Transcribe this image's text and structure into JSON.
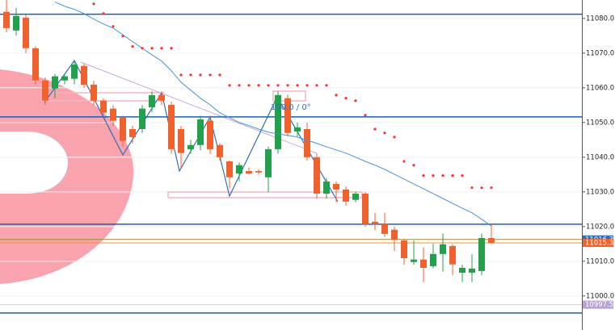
{
  "chart_data": {
    "type": "candlestick",
    "open": [
      11081.9,
      11076.5,
      11080.2,
      11071.4,
      11062.1,
      11059.8,
      11062.1,
      11062.6,
      11066.3,
      11060.9,
      11056.3,
      11054.0,
      11051.6,
      11048.1,
      11048.1,
      11054.4,
      11057.9,
      11055.1,
      11048.1,
      11042.3,
      11043.5,
      11050.5,
      11043.5,
      11038.8,
      11035.3,
      11036.0,
      11036.0,
      11034.2,
      11042.3,
      11057.0,
      11047.4,
      11048.1,
      11040.0,
      11029.5,
      11032.3,
      11030.7,
      11027.7,
      11029.5,
      11021.4,
      11020.7,
      11019.1,
      11016.0,
      11009.8,
      11010.5,
      11008.6,
      11012.1,
      11014.4,
      11006.7,
      11006.7,
      11007.2,
      11016.7
    ],
    "high": [
      11086,
      11083,
      11081,
      11072,
      11063,
      11064,
      11064,
      11068,
      11067,
      11062,
      11057,
      11055,
      11052,
      11049,
      11055,
      11059,
      11059,
      11056,
      11049,
      11045,
      11052,
      11052,
      11044,
      11039,
      11038.5,
      11037,
      11036.5,
      11043,
      11059,
      11058,
      11050,
      11050,
      11041,
      11034,
      11033,
      11031.5,
      11030,
      11030,
      11024,
      11024,
      11020,
      11016.5,
      11016,
      11014,
      11015,
      11018,
      11015,
      11009,
      11012,
      11018,
      11021
    ],
    "low": [
      11076,
      11075,
      11070,
      11061,
      11055,
      11057,
      11061,
      11061,
      11060,
      11055,
      11052,
      11049,
      11043,
      11044,
      11047,
      11053,
      11055,
      11041,
      11037,
      11041,
      11042,
      11041,
      11039,
      11031,
      11033,
      11035,
      11035,
      11030,
      11041,
      11046,
      11046,
      11039,
      11028,
      11028,
      11027,
      11026,
      11027,
      11020,
      11019,
      11017,
      11013,
      11009,
      11009,
      11004,
      11008,
      11007,
      11006,
      11004,
      11004,
      11006,
      11015
    ],
    "close": [
      11077.2,
      11080.7,
      11071.4,
      11062.1,
      11056.3,
      11063.3,
      11063.3,
      11066.7,
      11060.9,
      11056.3,
      11052.8,
      11050.5,
      11044.7,
      11045.8,
      11054.0,
      11057.9,
      11056.3,
      11042.3,
      11041.2,
      11043.5,
      11050.9,
      11042.3,
      11040.0,
      11034.2,
      11037.7,
      11035.3,
      11035.6,
      11042.3,
      11057.9,
      11047.0,
      11048.6,
      11040.0,
      11029.5,
      11033.0,
      11030.7,
      11027.2,
      11029.5,
      11020.7,
      11020.7,
      11017.9,
      11016.3,
      11010.9,
      11010.5,
      11008.1,
      11012.1,
      11014.9,
      11009.1,
      11008.1,
      11007.9,
      11016.7,
      11015.3
    ],
    "up_color": "#22a04b",
    "down_color": "#f0612d",
    "ylim": [
      10990.2,
      11085.3
    ],
    "yticks": [
      {
        "value": 11000,
        "label": "11000.0"
      },
      {
        "value": 11010,
        "label": "11010.0"
      },
      {
        "value": 11020,
        "label": "11020.0"
      },
      {
        "value": 11030,
        "label": "11030.0"
      },
      {
        "value": 11040,
        "label": "11040.0"
      },
      {
        "value": 11050,
        "label": "11050.0"
      },
      {
        "value": 11060,
        "label": "11060.0"
      },
      {
        "value": 11070,
        "label": "11070.0"
      },
      {
        "value": 11080,
        "label": "11080.0"
      }
    ],
    "grid": true,
    "moving_average": {
      "color": "#4a90d9",
      "values": [
        null,
        null,
        null,
        null,
        null,
        11084.7,
        11083.5,
        11082.6,
        11081.4,
        11079.8,
        11078.4,
        11077.2,
        11075.3,
        11073.3,
        11071.4,
        11069.5,
        11067.7,
        11064.9,
        11061.6,
        11059.3,
        11057.0,
        11055.1,
        11052.8,
        11051.4,
        11050.0,
        11049.1,
        11048.1,
        11047.2,
        11046.7,
        11046.3,
        11045.8,
        11044.9,
        11044.0,
        11043.0,
        11042.1,
        11041.2,
        11040.0,
        11038.8,
        11037.7,
        11036.5,
        11035.1,
        11033.7,
        11032.3,
        11030.9,
        11029.5,
        11028.1,
        11026.7,
        11025.3,
        11024.0,
        11022.1,
        11020.2
      ]
    },
    "sar": {
      "color": "#ff3030",
      "values": [
        null,
        null,
        null,
        null,
        null,
        null,
        null,
        null,
        null,
        11084.2,
        11081.4,
        11077.7,
        11074.9,
        11071.9,
        11071.4,
        11071.4,
        11071.4,
        11071.4,
        11063.7,
        11063.7,
        11063.7,
        11063.7,
        11063.7,
        11060.7,
        11060.7,
        11060.7,
        11060.7,
        11060.7,
        11060.7,
        11060.7,
        11060.7,
        11060.7,
        11060.7,
        11060.7,
        11057.9,
        11057.0,
        11056.3,
        11052.1,
        11048.1,
        11047.0,
        11045.8,
        11038.8,
        11037.7,
        11034.7,
        11034.7,
        11034.7,
        11034.7,
        11034.7,
        11031.2,
        11031.2,
        11031.2
      ]
    },
    "horizontal_lines": {
      "color": "#1f5fa8",
      "values": [
        11081.2,
        11051.6,
        11020.7,
        10995.1
      ]
    },
    "markers": [
      {
        "value": 11016.3,
        "color": "#2a6ebb",
        "line_color": "#9a8a3a"
      },
      {
        "value": 11015.3,
        "color": "#f0612d",
        "line_color": "#f0912d"
      },
      {
        "value": 10997.5,
        "color": "#b9a3d6",
        "line_color": "#d9cce8"
      }
    ],
    "annotation": "100.0 / 0°"
  }
}
